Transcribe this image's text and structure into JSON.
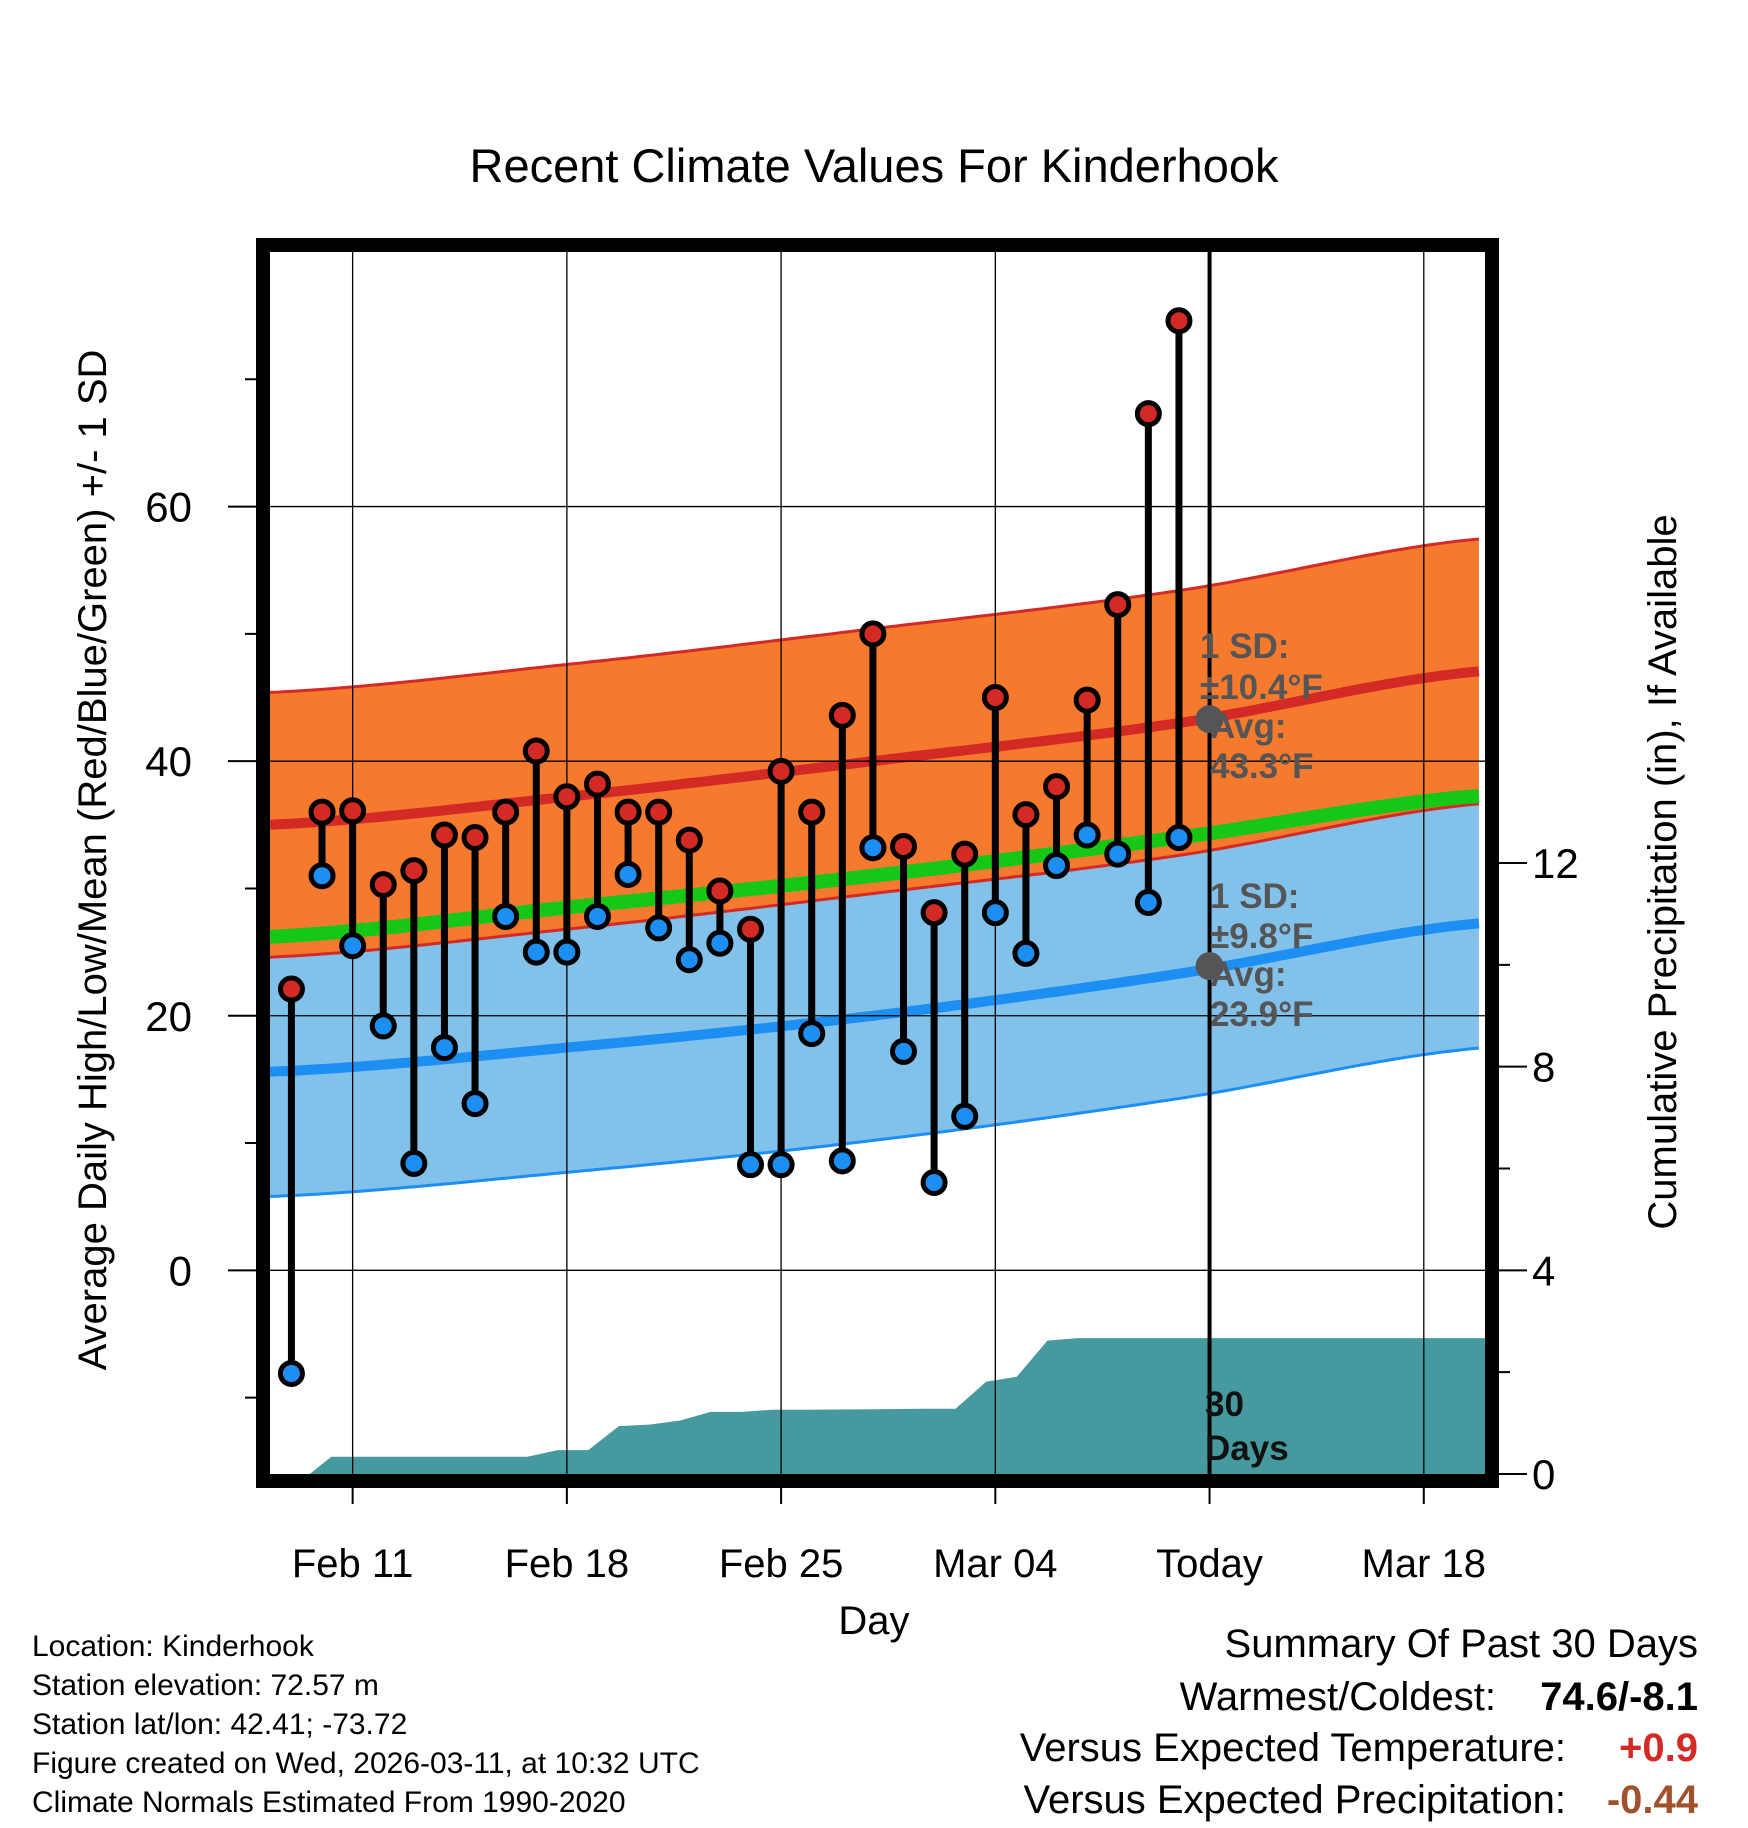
{
  "chart_data": {
    "type": "line",
    "title": "Recent Climate Values For Kinderhook",
    "xlabel": "Day",
    "ylabel": "Average Daily High/Low/Mean (Red/Blue/Green) +/- 1 SD",
    "y2label": "Cumulative Precipitation (in), If Available",
    "x_tick_labels": [
      "Feb 11",
      "Feb 18",
      "Feb 25",
      "Mar 04",
      "Today",
      "Mar 18"
    ],
    "x_tick_days": [
      2,
      9,
      16,
      23,
      30,
      37
    ],
    "xlim": [
      -0.7,
      39.0
    ],
    "ylim": [
      -16,
      80
    ],
    "y_ticks": [
      0,
      20,
      40,
      60
    ],
    "y2lim": [
      0,
      24
    ],
    "y2_ticks": [
      0,
      4,
      8,
      12
    ],
    "today_day": 30,
    "highs": [
      22.1,
      36.0,
      36.1,
      30.3,
      31.4,
      34.2,
      34.0,
      36.0,
      40.8,
      37.2,
      38.2,
      36.0,
      36.0,
      33.8,
      29.8,
      26.8,
      39.2,
      36.0,
      43.6,
      50.0,
      33.3,
      28.1,
      32.7,
      45.0,
      35.8,
      38.0,
      44.8,
      52.3,
      67.3,
      74.6
    ],
    "lows": [
      -8.1,
      31.0,
      25.5,
      19.2,
      8.4,
      17.5,
      13.1,
      27.8,
      25.0,
      25.0,
      27.8,
      31.1,
      26.9,
      24.4,
      25.7,
      8.3,
      8.3,
      18.6,
      8.6,
      33.2,
      17.2,
      6.9,
      12.1,
      28.1,
      24.9,
      31.8,
      34.2,
      32.7,
      28.9,
      34.0
    ],
    "normals": {
      "days": [
        -0.7,
        9,
        19,
        29,
        39
      ],
      "high_avg": [
        35.0,
        37.2,
        40.0,
        43.0,
        47.1
      ],
      "high_sd": 10.4,
      "mean_avg": [
        26.2,
        28.5,
        31.0,
        34.0,
        37.3
      ],
      "low_avg": [
        15.6,
        17.5,
        20.0,
        23.3,
        27.3
      ],
      "low_sd": 9.8
    },
    "precip": {
      "days": [
        -0.7,
        0.6,
        1.3,
        7.7,
        8.7,
        9.7,
        10.7,
        11.7,
        12.7,
        13.7,
        14.7,
        15.7,
        16.7,
        20.7,
        21.7,
        22.7,
        23.7,
        24.7,
        25.7,
        26.7,
        39.0
      ],
      "values": [
        0,
        0,
        0.34,
        0.34,
        0.47,
        0.47,
        0.94,
        0.97,
        1.05,
        1.22,
        1.22,
        1.26,
        1.26,
        1.28,
        1.28,
        1.81,
        1.91,
        2.62,
        2.67,
        2.67,
        2.67
      ]
    },
    "annotations": {
      "high_sd": "1 SD:",
      "high_sd_value": "±10.4°F",
      "high_avg": "Avg:",
      "high_avg_value": "43.3°F",
      "low_sd": "1 SD:",
      "low_sd_value": "±9.8°F",
      "low_avg": "Avg:",
      "low_avg_value": "23.9°F",
      "days_count": "30",
      "days_label": "Days"
    }
  },
  "colors": {
    "high_band": "#f57a2e",
    "high_line": "#d42a26",
    "low_band": "#82c1e9",
    "low_line": "#1d8ff2",
    "mean_line": "#16c716",
    "precip_fill": "#46999f",
    "annotation": "#555555",
    "positive": "#d42a26",
    "precip_diff": "#a0522d"
  },
  "info": {
    "location": "Location: Kinderhook",
    "elevation": "Station elevation: 72.57 m",
    "latlon": "Station lat/lon: 42.41; -73.72",
    "created": "Figure created on Wed, 2026-03-11, at 10:32 UTC",
    "normals": "Climate Normals Estimated From 1990-2020"
  },
  "summary": {
    "title": "Summary Of Past 30 Days",
    "warmest_label": "Warmest/Coldest:",
    "warmest_value": "74.6/-8.1",
    "temp_label": "Versus Expected Temperature:",
    "temp_value": "+0.9",
    "precip_label": "Versus Expected Precipitation:",
    "precip_value": "-0.44"
  }
}
